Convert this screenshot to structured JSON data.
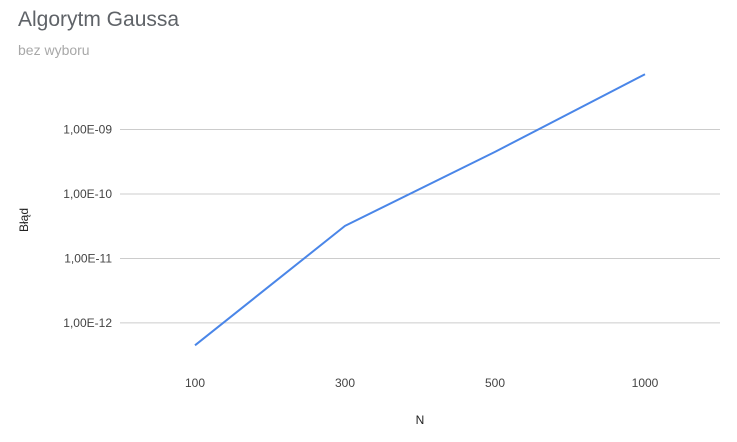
{
  "chart_data": {
    "type": "line",
    "title": "Algorytm Gaussa",
    "subtitle": "bez wyboru",
    "xlabel": "N",
    "ylabel": "Błąd",
    "y_scale": "log",
    "categories": [
      "100",
      "300",
      "500",
      "1000"
    ],
    "yticks": [
      1e-12,
      1e-11,
      1e-10,
      1e-09
    ],
    "ytick_labels": [
      "1,00E-12",
      "1,00E-11",
      "1,00E-10",
      "1,00E-09"
    ],
    "ylim": [
      2e-13,
      9e-09
    ],
    "series": [
      {
        "values": [
          4.5e-13,
          3.2e-11,
          4.5e-10,
          7.2e-09
        ],
        "color": "#4a86e8"
      }
    ],
    "grid": true,
    "legend": "none"
  }
}
